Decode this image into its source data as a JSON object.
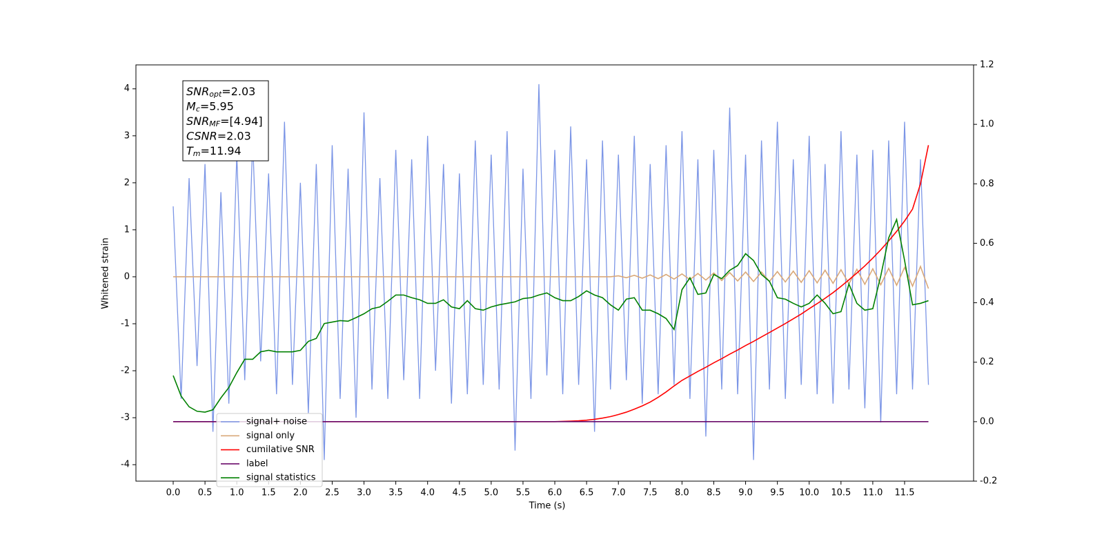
{
  "chart_data": {
    "type": "line",
    "xlabel": "Time (s)",
    "ylabel": "Whitened strain",
    "xlim": [
      -0.586,
      12.585
    ],
    "ylim": [
      -4.35,
      4.51
    ],
    "y2lim": [
      -0.2,
      1.2
    ],
    "xticks": [
      {
        "value": 0,
        "label": "0.0"
      },
      0.5,
      {
        "value": 1,
        "label": "1.0"
      },
      1.5,
      {
        "value": 2,
        "label": "2.0"
      },
      2.5,
      {
        "value": 3,
        "label": "3.0"
      },
      3.5,
      {
        "value": 4,
        "label": "4.0"
      },
      4.5,
      {
        "value": 5,
        "label": "5.0"
      },
      5.5,
      {
        "value": 6,
        "label": "6.0"
      },
      6.5,
      {
        "value": 7,
        "label": "7.0"
      },
      7.5,
      {
        "value": 8,
        "label": "8.0"
      },
      8.5,
      {
        "value": 9,
        "label": "9.0"
      },
      9.5,
      {
        "value": 10,
        "label": "10.0"
      },
      10.5,
      {
        "value": 11,
        "label": "11.0"
      },
      11.5
    ],
    "yticks": [
      -4,
      -3,
      -2,
      -1,
      0,
      1,
      2,
      3,
      4
    ],
    "y2ticks": [
      -0.2,
      {
        "value": 0,
        "label": "0.0"
      },
      0.2,
      0.4,
      0.6,
      0.8,
      {
        "value": 1,
        "label": "1.0"
      },
      1.2
    ],
    "annotation_lines": [
      {
        "base": "SNR",
        "sub": "opt",
        "rest": "=2.03"
      },
      {
        "base": "M",
        "sub": "c",
        "rest": "=5.95"
      },
      {
        "base": "SNR",
        "sub": "MF",
        "rest": "=[4.94]"
      },
      {
        "base": "CSNR",
        "sub": "",
        "rest": "=2.03"
      },
      {
        "base": "T",
        "sub": "m",
        "rest": "=11.94"
      }
    ],
    "x": [
      0,
      0.125,
      0.25,
      0.375,
      0.5,
      0.625,
      0.75,
      0.875,
      1,
      1.125,
      1.25,
      1.375,
      1.5,
      1.625,
      1.75,
      1.875,
      2,
      2.125,
      2.25,
      2.375,
      2.5,
      2.625,
      2.75,
      2.875,
      3,
      3.125,
      3.25,
      3.375,
      3.5,
      3.625,
      3.75,
      3.875,
      4,
      4.125,
      4.25,
      4.375,
      4.5,
      4.625,
      4.75,
      4.875,
      5,
      5.125,
      5.25,
      5.375,
      5.5,
      5.625,
      5.75,
      5.875,
      6,
      6.125,
      6.25,
      6.375,
      6.5,
      6.625,
      6.75,
      6.875,
      7,
      7.125,
      7.25,
      7.375,
      7.5,
      7.625,
      7.75,
      7.875,
      8,
      8.125,
      8.25,
      8.375,
      8.5,
      8.625,
      8.75,
      8.875,
      9,
      9.125,
      9.25,
      9.375,
      9.5,
      9.625,
      9.75,
      9.875,
      10,
      10.125,
      10.25,
      10.375,
      10.5,
      10.625,
      10.75,
      10.875,
      11,
      11.125,
      11.25,
      11.375,
      11.5,
      11.625,
      11.75,
      11.875
    ],
    "series": [
      {
        "name": "signal+ noise",
        "color": "#7b95e6",
        "values": [
          1.5,
          -2.6,
          2.1,
          -1.9,
          2.4,
          -3.3,
          1.8,
          -2.7,
          2.6,
          -2.2,
          2.9,
          -1.8,
          2.2,
          -2.5,
          3.3,
          -2.3,
          2.0,
          -2.9,
          2.4,
          -3.9,
          2.8,
          -2.6,
          2.3,
          -3.0,
          3.5,
          -2.4,
          2.1,
          -2.6,
          2.7,
          -2.2,
          2.5,
          -2.6,
          3.0,
          -2.0,
          2.4,
          -2.7,
          2.2,
          -2.5,
          2.9,
          -2.3,
          2.6,
          -2.4,
          3.1,
          -3.7,
          2.3,
          -2.6,
          4.1,
          -2.1,
          2.7,
          -2.5,
          3.2,
          -2.3,
          2.5,
          -3.3,
          2.9,
          -2.4,
          2.6,
          -2.2,
          3.0,
          -2.7,
          2.4,
          -2.5,
          2.8,
          -2.3,
          3.1,
          -2.6,
          2.5,
          -3.4,
          2.7,
          -2.4,
          3.6,
          -2.5,
          2.6,
          -3.9,
          2.9,
          -2.4,
          3.3,
          -2.6,
          2.5,
          -2.3,
          3.0,
          -2.5,
          2.4,
          -2.7,
          3.1,
          -2.4,
          2.6,
          -2.8,
          2.7,
          -3.1,
          2.9,
          -2.5,
          3.3,
          -2.4,
          2.5,
          -2.3
        ]
      },
      {
        "name": "signal only",
        "color": "#d9a878",
        "values": [
          0,
          0,
          0,
          0,
          0,
          0,
          0,
          0,
          0,
          0,
          0,
          0,
          0,
          0,
          0,
          0,
          0,
          0,
          0,
          0,
          0,
          0,
          0,
          0,
          0,
          0,
          0,
          0,
          0,
          0,
          0,
          0,
          0,
          0,
          0,
          0,
          0,
          0,
          0,
          0,
          0,
          0,
          0,
          0,
          0,
          0,
          0,
          0,
          0,
          0,
          0,
          0,
          0,
          0,
          0,
          0,
          0.02,
          -0.02,
          0.03,
          -0.03,
          0.04,
          -0.04,
          0.05,
          -0.05,
          0.06,
          -0.06,
          0.07,
          -0.07,
          0.08,
          -0.08,
          0.09,
          -0.09,
          0.1,
          -0.1,
          0.1,
          -0.1,
          0.11,
          -0.11,
          0.12,
          -0.12,
          0.13,
          -0.13,
          0.14,
          -0.14,
          0.15,
          -0.15,
          0.16,
          -0.16,
          0.17,
          -0.17,
          0.18,
          -0.18,
          0.2,
          -0.2,
          0.22,
          -0.25
        ]
      },
      {
        "name": "cumilative SNR",
        "color": "#ff0000",
        "axis": "y2",
        "values": [
          0,
          0,
          0,
          0,
          0,
          0,
          0,
          0,
          0,
          0,
          0,
          0,
          0,
          0,
          0,
          0,
          0,
          0,
          0,
          0,
          0,
          0,
          0,
          0,
          0,
          0,
          0,
          0,
          0,
          0,
          0,
          0,
          0,
          0,
          0,
          0,
          0,
          0,
          0,
          0,
          0,
          0,
          0,
          0,
          0,
          0,
          0,
          0,
          0,
          0.001,
          0.002,
          0.003,
          0.005,
          0.008,
          0.012,
          0.017,
          0.024,
          0.032,
          0.042,
          0.053,
          0.066,
          0.082,
          0.1,
          0.12,
          0.139,
          0.154,
          0.169,
          0.183,
          0.198,
          0.212,
          0.227,
          0.241,
          0.256,
          0.27,
          0.285,
          0.3,
          0.315,
          0.33,
          0.346,
          0.362,
          0.38,
          0.397,
          0.415,
          0.434,
          0.455,
          0.477,
          0.5,
          0.524,
          0.55,
          0.578,
          0.608,
          0.64,
          0.675,
          0.715,
          0.8,
          0.93
        ]
      },
      {
        "name": "label",
        "color": "#6a0a6a",
        "axis": "y2",
        "values": [
          0,
          0,
          0,
          0,
          0,
          0,
          0,
          0,
          0,
          0,
          0,
          0,
          0,
          0,
          0,
          0,
          0,
          0,
          0,
          0,
          0,
          0,
          0,
          0,
          0,
          0,
          0,
          0,
          0,
          0,
          0,
          0,
          0,
          0,
          0,
          0,
          0,
          0,
          0,
          0,
          0,
          0,
          0,
          0,
          0,
          0,
          0,
          0,
          0,
          0,
          0,
          0,
          0,
          0,
          0,
          0,
          0,
          0,
          0,
          0,
          0,
          0,
          0,
          0,
          0,
          0,
          0,
          0,
          0,
          0,
          0,
          0,
          0,
          0,
          0,
          0,
          0,
          0,
          0,
          0,
          0,
          0,
          0,
          0,
          0,
          0,
          0,
          0,
          0,
          0,
          0,
          0,
          0,
          0,
          0,
          0
        ]
      },
      {
        "name": "signal statistics",
        "color": "#008000",
        "axis": "y2",
        "values": [
          0.155,
          0.086,
          0.05,
          0.035,
          0.032,
          0.04,
          0.08,
          0.115,
          0.165,
          0.21,
          0.21,
          0.235,
          0.24,
          0.235,
          0.235,
          0.235,
          0.24,
          0.27,
          0.28,
          0.33,
          0.335,
          0.34,
          0.338,
          0.35,
          0.363,
          0.38,
          0.386,
          0.405,
          0.426,
          0.426,
          0.417,
          0.41,
          0.398,
          0.398,
          0.41,
          0.386,
          0.38,
          0.407,
          0.38,
          0.375,
          0.386,
          0.393,
          0.398,
          0.403,
          0.414,
          0.417,
          0.426,
          0.433,
          0.417,
          0.407,
          0.407,
          0.421,
          0.44,
          0.426,
          0.417,
          0.393,
          0.375,
          0.412,
          0.417,
          0.375,
          0.375,
          0.363,
          0.347,
          0.31,
          0.444,
          0.484,
          0.428,
          0.433,
          0.495,
          0.481,
          0.509,
          0.525,
          0.565,
          0.542,
          0.495,
          0.472,
          0.417,
          0.412,
          0.398,
          0.386,
          0.398,
          0.426,
          0.398,
          0.363,
          0.37,
          0.463,
          0.398,
          0.375,
          0.38,
          0.49,
          0.618,
          0.68,
          0.542,
          0.393,
          0.398,
          0.407
        ]
      }
    ]
  }
}
